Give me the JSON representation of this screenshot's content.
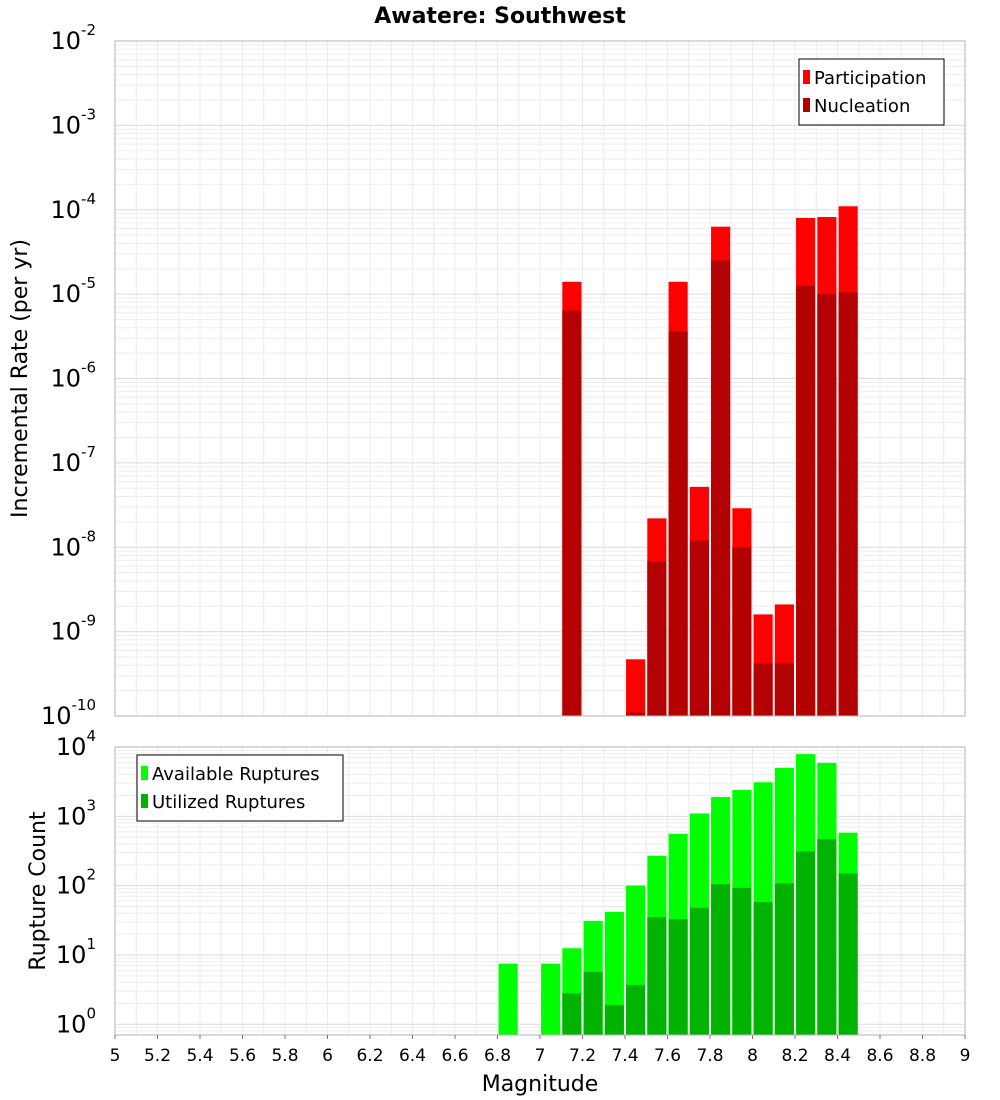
{
  "chart_data": [
    {
      "type": "bar",
      "title": "Awatere: Southwest",
      "xlabel": "Magnitude",
      "ylabel": "Incremental Rate (per yr)",
      "y_scale": "log",
      "ylim": [
        1e-10,
        0.01
      ],
      "xlim": [
        5,
        9
      ],
      "y_ticks": [
        {
          "base": "10",
          "exp": "-10"
        },
        {
          "base": "10",
          "exp": "-9"
        },
        {
          "base": "10",
          "exp": "-8"
        },
        {
          "base": "10",
          "exp": "-7"
        },
        {
          "base": "10",
          "exp": "-6"
        },
        {
          "base": "10",
          "exp": "-5"
        },
        {
          "base": "10",
          "exp": "-4"
        },
        {
          "base": "10",
          "exp": "-3"
        },
        {
          "base": "10",
          "exp": "-2"
        }
      ],
      "grid": true,
      "legend_position": "top-right",
      "bar_width": 0.09,
      "series": [
        {
          "name": "Participation",
          "color": "#ff0000",
          "points": [
            {
              "x": 7.15,
              "y": 1.4e-05
            },
            {
              "x": 7.45,
              "y": 4.7e-10
            },
            {
              "x": 7.55,
              "y": 2.2e-08
            },
            {
              "x": 7.65,
              "y": 1.4e-05
            },
            {
              "x": 7.75,
              "y": 5.2e-08
            },
            {
              "x": 7.85,
              "y": 6.3e-05
            },
            {
              "x": 7.95,
              "y": 2.9e-08
            },
            {
              "x": 8.05,
              "y": 1.6e-09
            },
            {
              "x": 8.15,
              "y": 2.1e-09
            },
            {
              "x": 8.25,
              "y": 8e-05
            },
            {
              "x": 8.35,
              "y": 8.2e-05
            },
            {
              "x": 8.45,
              "y": 0.00011
            }
          ]
        },
        {
          "name": "Nucleation",
          "color": "#b30000",
          "points": [
            {
              "x": 7.15,
              "y": 6.4e-06
            },
            {
              "x": 7.45,
              "y": 1.1e-10
            },
            {
              "x": 7.55,
              "y": 6.8e-09
            },
            {
              "x": 7.65,
              "y": 3.6e-06
            },
            {
              "x": 7.75,
              "y": 1.2e-08
            },
            {
              "x": 7.85,
              "y": 2.5e-05
            },
            {
              "x": 7.95,
              "y": 1e-08
            },
            {
              "x": 8.05,
              "y": 4.2e-10
            },
            {
              "x": 8.15,
              "y": 4.2e-10
            },
            {
              "x": 8.25,
              "y": 1.25e-05
            },
            {
              "x": 8.35,
              "y": 1e-05
            },
            {
              "x": 8.45,
              "y": 1.05e-05
            }
          ]
        }
      ]
    },
    {
      "type": "bar",
      "xlabel": "Magnitude",
      "ylabel": "Rupture Count",
      "y_scale": "log",
      "ylim": [
        0.7,
        10000
      ],
      "xlim": [
        5,
        9
      ],
      "y_ticks": [
        {
          "base": "10",
          "exp": "0",
          "value": 1
        },
        {
          "base": "10",
          "exp": "1",
          "value": 10
        },
        {
          "base": "10",
          "exp": "2",
          "value": 100
        },
        {
          "base": "10",
          "exp": "3",
          "value": 1000
        },
        {
          "base": "10",
          "exp": "4",
          "value": 10000
        }
      ],
      "x_tick_labels": [
        "5",
        "5.2",
        "5.4",
        "5.6",
        "5.8",
        "6",
        "6.2",
        "6.4",
        "6.6",
        "6.8",
        "7",
        "7.2",
        "7.4",
        "7.6",
        "7.8",
        "8",
        "8.2",
        "8.4",
        "8.6",
        "8.8",
        "9"
      ],
      "grid": true,
      "legend_position": "top-left",
      "bar_width": 0.09,
      "series": [
        {
          "name": "Available Ruptures",
          "color": "#00ff00",
          "points": [
            {
              "x": 6.85,
              "y": 7.5
            },
            {
              "x": 7.05,
              "y": 7.5
            },
            {
              "x": 7.15,
              "y": 12.5
            },
            {
              "x": 7.25,
              "y": 31
            },
            {
              "x": 7.35,
              "y": 42
            },
            {
              "x": 7.45,
              "y": 100
            },
            {
              "x": 7.55,
              "y": 270
            },
            {
              "x": 7.65,
              "y": 560
            },
            {
              "x": 7.75,
              "y": 1100
            },
            {
              "x": 7.85,
              "y": 1900
            },
            {
              "x": 7.95,
              "y": 2400
            },
            {
              "x": 8.05,
              "y": 3100
            },
            {
              "x": 8.15,
              "y": 5000
            },
            {
              "x": 8.25,
              "y": 7900
            },
            {
              "x": 8.35,
              "y": 5900
            },
            {
              "x": 8.45,
              "y": 580
            }
          ]
        },
        {
          "name": "Utilized Ruptures",
          "color": "#00b300",
          "points": [
            {
              "x": 7.15,
              "y": 2.8
            },
            {
              "x": 7.25,
              "y": 5.7
            },
            {
              "x": 7.35,
              "y": 1.9
            },
            {
              "x": 7.45,
              "y": 3.7
            },
            {
              "x": 7.55,
              "y": 35
            },
            {
              "x": 7.65,
              "y": 33
            },
            {
              "x": 7.75,
              "y": 48
            },
            {
              "x": 7.85,
              "y": 105
            },
            {
              "x": 7.95,
              "y": 93
            },
            {
              "x": 8.05,
              "y": 58
            },
            {
              "x": 8.15,
              "y": 108
            },
            {
              "x": 8.25,
              "y": 310
            },
            {
              "x": 8.35,
              "y": 470
            },
            {
              "x": 8.45,
              "y": 150
            }
          ]
        }
      ]
    }
  ]
}
